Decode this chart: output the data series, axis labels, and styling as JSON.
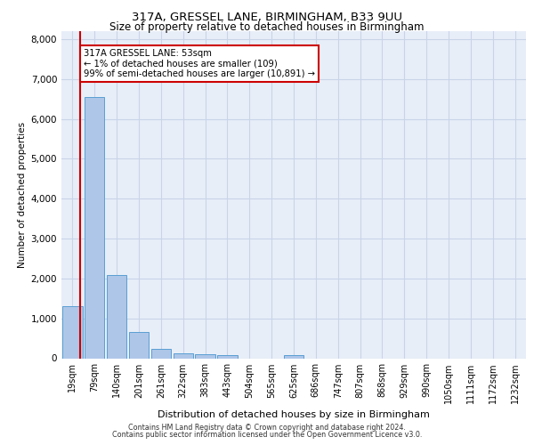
{
  "title1": "317A, GRESSEL LANE, BIRMINGHAM, B33 9UU",
  "title2": "Size of property relative to detached houses in Birmingham",
  "xlabel": "Distribution of detached houses by size in Birmingham",
  "ylabel": "Number of detached properties",
  "bin_labels": [
    "19sqm",
    "79sqm",
    "140sqm",
    "201sqm",
    "261sqm",
    "322sqm",
    "383sqm",
    "443sqm",
    "504sqm",
    "565sqm",
    "625sqm",
    "686sqm",
    "747sqm",
    "807sqm",
    "868sqm",
    "929sqm",
    "990sqm",
    "1050sqm",
    "1111sqm",
    "1172sqm",
    "1232sqm"
  ],
  "bar_values": [
    1300,
    6550,
    2080,
    650,
    240,
    130,
    100,
    70,
    0,
    0,
    70,
    0,
    0,
    0,
    0,
    0,
    0,
    0,
    0,
    0,
    0
  ],
  "bar_color": "#aec6e8",
  "bar_edge_color": "#5a9fd4",
  "grid_color": "#c8d4e8",
  "background_color": "#e8eef8",
  "annotation_line1": "317A GRESSEL LANE: 53sqm",
  "annotation_line2": "← 1% of detached houses are smaller (109)",
  "annotation_line3": "99% of semi-detached houses are larger (10,891) →",
  "property_line_color": "#cc0000",
  "annotation_box_color": "#ffffff",
  "annotation_box_edge_color": "#cc0000",
  "ylim": [
    0,
    8200
  ],
  "yticks": [
    0,
    1000,
    2000,
    3000,
    4000,
    5000,
    6000,
    7000,
    8000
  ],
  "footer_line1": "Contains HM Land Registry data © Crown copyright and database right 2024.",
  "footer_line2": "Contains public sector information licensed under the Open Government Licence v3.0."
}
